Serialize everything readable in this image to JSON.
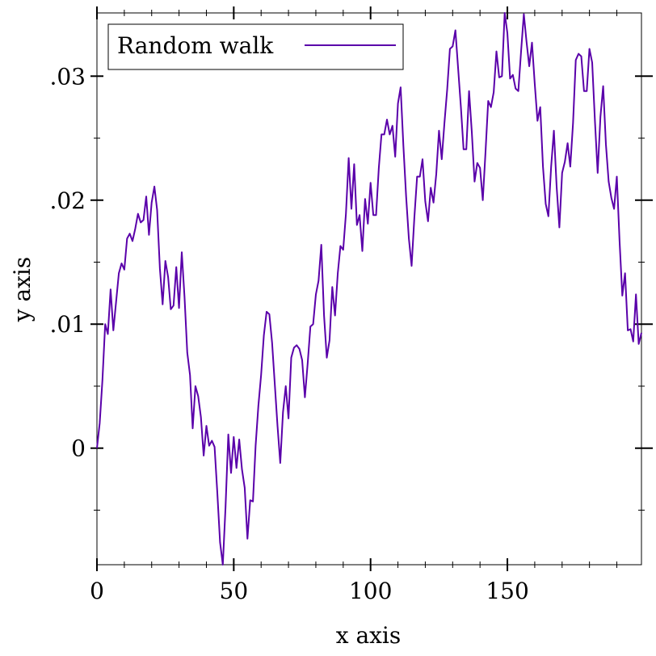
{
  "chart_data": {
    "type": "line",
    "title": "",
    "xlabel": "x axis",
    "ylabel": "y axis",
    "xlim": [
      0,
      199
    ],
    "ylim": [
      -0.0094,
      0.0351
    ],
    "x_ticks": [
      0,
      50,
      100,
      150
    ],
    "x_tick_labels": [
      "0",
      "50",
      "100",
      "150"
    ],
    "y_ticks": [
      0,
      0.01,
      0.02,
      0.03
    ],
    "y_tick_labels": [
      "0",
      ".01",
      ".02",
      ".03"
    ],
    "grid": false,
    "legend_position": "top-left",
    "series": [
      {
        "name": "Random walk",
        "color": "#5a00aa",
        "x_start": 0,
        "x_step": 1,
        "values": [
          0.0,
          0.002,
          0.0055,
          0.01,
          0.0092,
          0.0128,
          0.0095,
          0.0118,
          0.0141,
          0.0149,
          0.0144,
          0.0169,
          0.0173,
          0.0167,
          0.0177,
          0.0189,
          0.0182,
          0.0184,
          0.0203,
          0.0172,
          0.0198,
          0.0211,
          0.0192,
          0.0145,
          0.0116,
          0.0151,
          0.0138,
          0.0112,
          0.0115,
          0.0146,
          0.0113,
          0.0158,
          0.0122,
          0.0077,
          0.0059,
          0.0016,
          0.005,
          0.0042,
          0.0025,
          -0.0006,
          0.0018,
          0.0002,
          0.0006,
          0.0001,
          -0.0036,
          -0.0076,
          -0.0094,
          -0.0047,
          0.0011,
          -0.002,
          0.0009,
          -0.0016,
          0.0007,
          -0.0017,
          -0.0032,
          -0.0073,
          -0.0042,
          -0.0043,
          0.0002,
          0.0034,
          0.0059,
          0.0091,
          0.011,
          0.0108,
          0.0085,
          0.0051,
          0.0018,
          -0.0012,
          0.0029,
          0.005,
          0.0024,
          0.0073,
          0.0081,
          0.0083,
          0.008,
          0.0071,
          0.0041,
          0.0068,
          0.0098,
          0.01,
          0.0124,
          0.0135,
          0.0164,
          0.0107,
          0.0073,
          0.0087,
          0.013,
          0.0107,
          0.0141,
          0.0163,
          0.016,
          0.0189,
          0.0234,
          0.0193,
          0.0229,
          0.018,
          0.0188,
          0.0159,
          0.0201,
          0.0181,
          0.0214,
          0.0188,
          0.0188,
          0.0226,
          0.0253,
          0.0253,
          0.0265,
          0.0253,
          0.026,
          0.0235,
          0.0278,
          0.0291,
          0.0244,
          0.0203,
          0.0169,
          0.0147,
          0.0186,
          0.0219,
          0.0219,
          0.0233,
          0.0199,
          0.0183,
          0.021,
          0.0198,
          0.0221,
          0.0256,
          0.0233,
          0.0262,
          0.0289,
          0.0322,
          0.0324,
          0.0337,
          0.0306,
          0.0275,
          0.0241,
          0.0241,
          0.0288,
          0.0255,
          0.0215,
          0.023,
          0.0226,
          0.02,
          0.0238,
          0.028,
          0.0275,
          0.0287,
          0.032,
          0.0299,
          0.03,
          0.0351,
          0.0335,
          0.0298,
          0.0301,
          0.029,
          0.0288,
          0.032,
          0.035,
          0.0328,
          0.0308,
          0.0327,
          0.0294,
          0.0264,
          0.0275,
          0.0227,
          0.0197,
          0.0187,
          0.0227,
          0.0256,
          0.0211,
          0.0178,
          0.0222,
          0.0231,
          0.0246,
          0.0227,
          0.0262,
          0.0313,
          0.0318,
          0.0316,
          0.0288,
          0.0288,
          0.0322,
          0.0311,
          0.0264,
          0.0222,
          0.0267,
          0.0292,
          0.0245,
          0.0215,
          0.0202,
          0.0193,
          0.0219,
          0.0167,
          0.0123,
          0.0141,
          0.0095,
          0.0096,
          0.0086,
          0.0124,
          0.0084,
          0.0093
        ]
      }
    ]
  }
}
